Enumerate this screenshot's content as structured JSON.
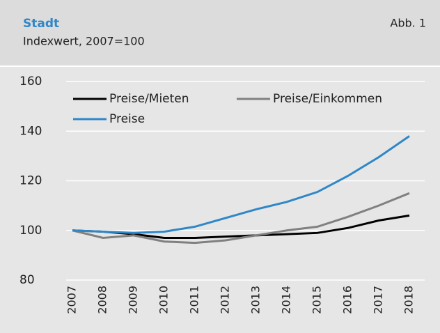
{
  "chart_data": {
    "type": "line",
    "title": "Stadt",
    "subtitle": "Indexwert, 2007=100",
    "annotation": "Abb. 1",
    "categories": [
      "2007",
      "2008",
      "2009",
      "2010",
      "2011",
      "2012",
      "2013",
      "2014",
      "2015",
      "2016",
      "2017",
      "2018"
    ],
    "series": [
      {
        "name": "Preise/Mieten",
        "color": "#000000",
        "values": [
          100,
          99.5,
          98.5,
          97,
          97,
          97.5,
          98,
          98.5,
          99,
          101,
          104,
          106
        ]
      },
      {
        "name": "Preise/Einkommen",
        "color": "#808080",
        "values": [
          100,
          97,
          98,
          95.5,
          95,
          96,
          98,
          100,
          101.5,
          105.5,
          110,
          115
        ]
      },
      {
        "name": "Preise",
        "color": "#2f87c8",
        "values": [
          100,
          99.5,
          99,
          99.5,
          101.5,
          105,
          108.5,
          111.5,
          115.5,
          122,
          129.5,
          138
        ]
      }
    ],
    "ylim": [
      80,
      160
    ],
    "yticks": [
      80,
      100,
      120,
      140,
      160
    ],
    "grid": true
  }
}
